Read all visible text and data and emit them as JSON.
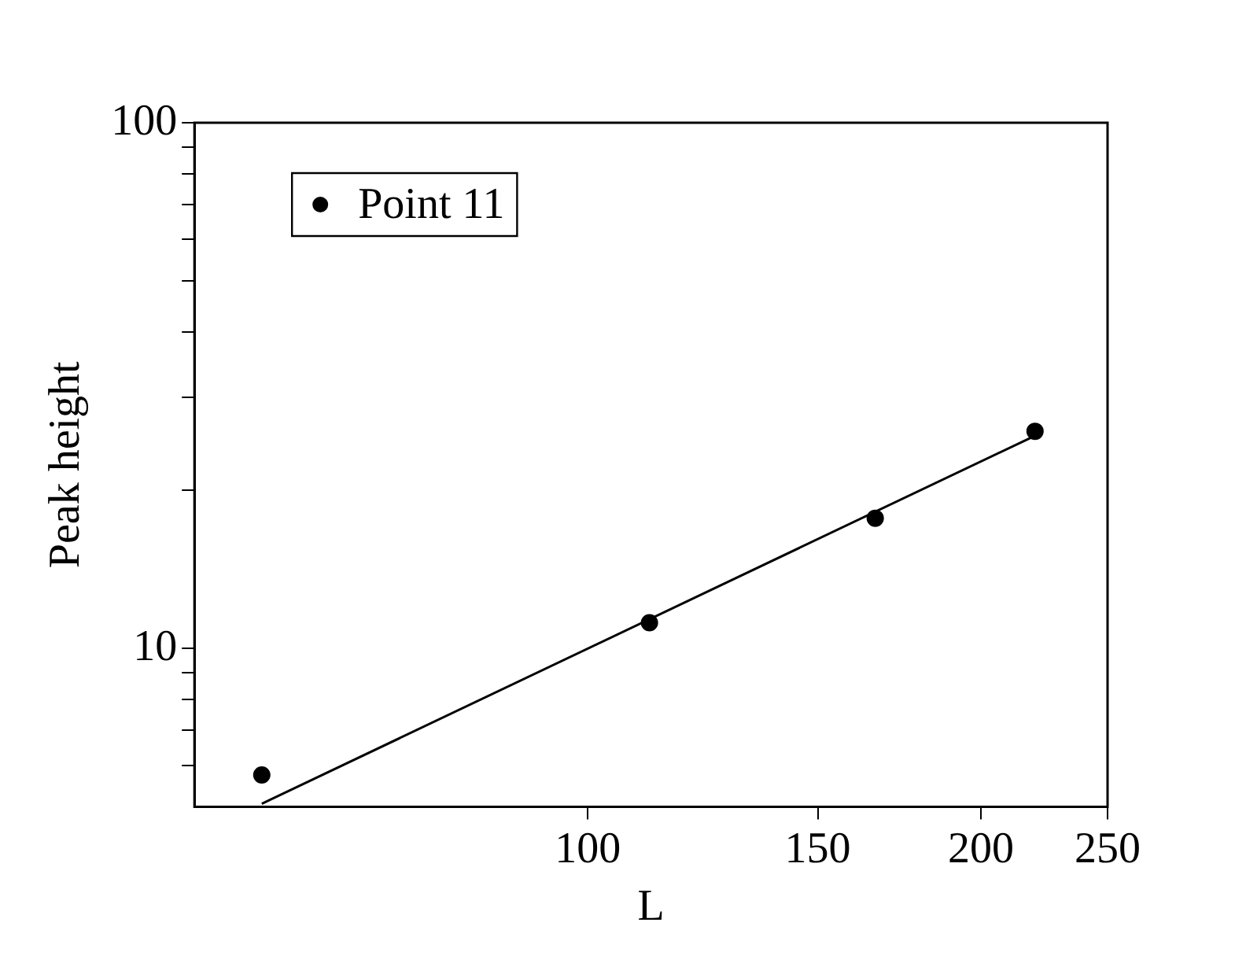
{
  "chart_data": {
    "type": "scatter",
    "xlabel": "L",
    "ylabel": "Peak height",
    "log": "xy",
    "legend": "top left",
    "marker": "circle",
    "grid": false,
    "xlim": [
      50,
      250
    ],
    "xticks": [
      100,
      150,
      200,
      250
    ],
    "ylim": [
      5,
      100
    ],
    "yticks": [
      {
        "value": 6,
        "label": null
      },
      {
        "value": 7,
        "label": null
      },
      {
        "value": 8,
        "label": null
      },
      {
        "value": 9,
        "label": null
      },
      10,
      {
        "value": 20,
        "label": null
      },
      {
        "value": 30,
        "label": null
      },
      {
        "value": 40,
        "label": null
      },
      {
        "value": 50,
        "label": null
      },
      {
        "value": 60,
        "label": null
      },
      {
        "value": 70,
        "label": null
      },
      {
        "value": 80,
        "label": null
      },
      {
        "value": 90,
        "label": null
      },
      100
    ],
    "series": [
      {
        "name": "Point 11",
        "color": "#000000",
        "x": [
          56.3,
          111.5,
          166,
          220
        ],
        "values": [
          5.75,
          11.2,
          17.7,
          25.9
        ]
      },
      {
        "type": "line",
        "color": "#000000",
        "marker": "none",
        "x": [
          56.3,
          220
        ],
        "values": [
          5.07,
          25.4
        ]
      }
    ]
  }
}
